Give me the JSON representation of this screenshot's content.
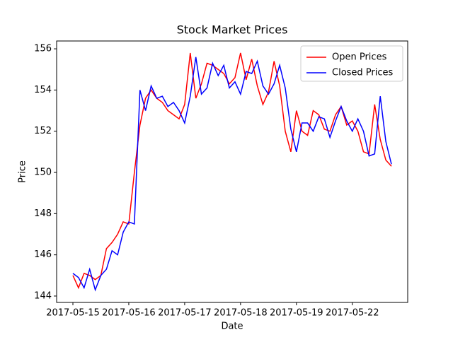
{
  "chart_data": {
    "type": "line",
    "title": "Stock Market Prices",
    "x_label": "Date",
    "y_label": "Price",
    "categories": [
      "2017-05-15",
      null,
      null,
      null,
      null,
      null,
      null,
      null,
      null,
      null,
      "2017-05-16",
      null,
      null,
      null,
      null,
      null,
      null,
      null,
      null,
      null,
      "2017-05-17",
      null,
      null,
      null,
      null,
      null,
      null,
      null,
      null,
      null,
      "2017-05-18",
      null,
      null,
      null,
      null,
      null,
      null,
      null,
      null,
      null,
      "2017-05-19",
      null,
      null,
      null,
      null,
      null,
      null,
      null,
      null,
      null,
      "2017-05-22",
      null,
      null,
      null,
      null,
      null,
      null,
      null
    ],
    "series": [
      {
        "name": "Open Prices",
        "color": "#ff0000",
        "values": [
          145.0,
          144.4,
          145.1,
          145.0,
          144.8,
          145.0,
          146.3,
          146.6,
          147.0,
          147.6,
          147.5,
          150.0,
          152.3,
          153.6,
          154.0,
          153.6,
          153.4,
          153.0,
          152.8,
          152.6,
          153.3,
          155.8,
          153.6,
          154.3,
          155.3,
          155.2,
          155.0,
          154.8,
          154.3,
          154.6,
          155.8,
          154.5,
          155.5,
          154.2,
          153.3,
          153.9,
          155.4,
          154.2,
          152.0,
          151.0,
          153.0,
          152.0,
          151.8,
          153.0,
          152.8,
          152.1,
          152.0,
          152.8,
          153.2,
          152.3,
          152.5,
          152.0,
          151.0,
          150.9,
          153.3,
          151.6,
          150.6,
          150.3
        ]
      },
      {
        "name": "Closed Prices",
        "color": "#0000ff",
        "values": [
          145.1,
          144.9,
          144.4,
          145.3,
          144.3,
          145.0,
          145.3,
          146.2,
          146.0,
          147.1,
          147.6,
          147.5,
          154.0,
          153.0,
          154.2,
          153.6,
          153.7,
          153.2,
          153.4,
          153.0,
          152.4,
          153.7,
          155.6,
          153.8,
          154.1,
          155.3,
          154.7,
          155.2,
          154.1,
          154.4,
          153.8,
          154.9,
          154.8,
          155.4,
          154.2,
          153.8,
          154.3,
          155.2,
          154.1,
          152.1,
          151.0,
          152.4,
          152.4,
          152.0,
          152.7,
          152.6,
          151.7,
          152.5,
          153.2,
          152.5,
          152.0,
          152.6,
          152.0,
          150.8,
          150.9,
          153.7,
          151.5,
          150.4
        ]
      }
    ],
    "ylim": [
      143.69,
      156.38
    ],
    "yticks": [
      144,
      146,
      148,
      150,
      152,
      154,
      156
    ],
    "legend": "upper right",
    "grid": false
  }
}
